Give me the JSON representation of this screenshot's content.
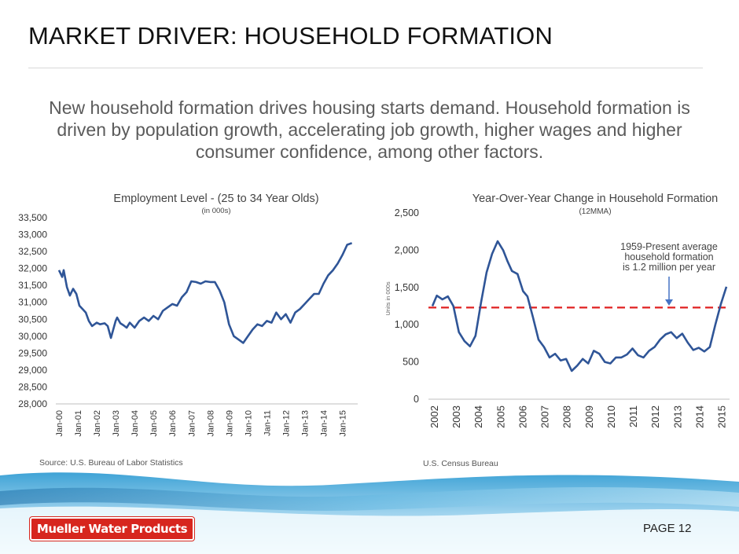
{
  "slide": {
    "title": "MARKET DRIVER:  HOUSEHOLD FORMATION",
    "subtitle": "New household formation drives housing starts demand.  Household formation is driven by population growth, accelerating job growth, higher wages and higher consumer confidence, among other factors.",
    "page": "PAGE 12",
    "logo_text": "Mueller Water Products",
    "colors": {
      "line": "#2f5597",
      "dashed_average": "#e02020",
      "brand_red": "#d7261e"
    }
  },
  "chart_data": [
    {
      "type": "line",
      "title": "Employment Level - (25 to 34 Year Olds)",
      "subtitle": "(in 000s)",
      "source": "Source: U.S. Bureau of Labor Statistics",
      "ylim": [
        28000,
        33500
      ],
      "yticks": [
        28000,
        28500,
        29000,
        29500,
        30000,
        30500,
        31000,
        31500,
        32000,
        32500,
        33000,
        33500
      ],
      "ytick_labels": [
        "28,000",
        "28,500",
        "29,000",
        "29,500",
        "30,000",
        "30,500",
        "31,000",
        "31,500",
        "32,000",
        "32,500",
        "33,000",
        "33,500"
      ],
      "xtick_labels": [
        "Jan-00",
        "Jan-01",
        "Jan-02",
        "Jan-03",
        "Jan-04",
        "Jan-05",
        "Jan-06",
        "Jan-07",
        "Jan-08",
        "Jan-09",
        "Jan-10",
        "Jan-11",
        "Jan-12",
        "Jan-13",
        "Jan-14",
        "Jan-15"
      ],
      "xlim": [
        2000.0,
        2015.6
      ],
      "series": [
        {
          "x": [
            2000.0,
            2000.17,
            2000.25,
            2000.42,
            2000.58,
            2000.75,
            2000.92,
            2001.08,
            2001.25,
            2001.42,
            2001.58,
            2001.75,
            2002.0,
            2002.17,
            2002.42,
            2002.58,
            2002.75,
            2003.0,
            2003.08,
            2003.25,
            2003.42,
            2003.58,
            2003.75,
            2004.0,
            2004.25,
            2004.5,
            2004.75,
            2005.0,
            2005.25,
            2005.5,
            2005.75,
            2006.0,
            2006.25,
            2006.5,
            2006.75,
            2007.0,
            2007.25,
            2007.5,
            2007.75,
            2008.0,
            2008.25,
            2008.5,
            2008.75,
            2009.0,
            2009.25,
            2009.5,
            2009.75,
            2010.0,
            2010.25,
            2010.5,
            2010.75,
            2011.0,
            2011.25,
            2011.5,
            2011.75,
            2012.0,
            2012.25,
            2012.5,
            2012.75,
            2013.0,
            2013.25,
            2013.5,
            2013.75,
            2014.0,
            2014.25,
            2014.5,
            2014.75,
            2015.0,
            2015.25,
            2015.5
          ],
          "y": [
            31950,
            31750,
            31950,
            31450,
            31200,
            31400,
            31250,
            30900,
            30800,
            30700,
            30450,
            30300,
            30400,
            30350,
            30380,
            30300,
            29950,
            30450,
            30550,
            30380,
            30320,
            30250,
            30400,
            30250,
            30450,
            30550,
            30450,
            30600,
            30500,
            30750,
            30850,
            30950,
            30900,
            31150,
            31300,
            31620,
            31600,
            31550,
            31620,
            31600,
            31600,
            31350,
            31000,
            30350,
            30000,
            29900,
            29800,
            30000,
            30200,
            30350,
            30300,
            30450,
            30400,
            30700,
            30500,
            30650,
            30400,
            30700,
            30800,
            30950,
            31100,
            31250,
            31250,
            31550,
            31800,
            31950,
            32150,
            32400,
            32700,
            32750
          ]
        }
      ]
    },
    {
      "type": "line",
      "title": "Year-Over-Year Change in Household Formation",
      "subtitle": "(12MMA)",
      "source": "U.S. Census Bureau",
      "ylabel": "Units in 000s",
      "ylim": [
        0,
        2500
      ],
      "yticks": [
        0,
        500,
        1000,
        1500,
        2000,
        2500
      ],
      "ytick_labels": [
        "0",
        "500",
        "1,000",
        "1,500",
        "2,000",
        "2,500"
      ],
      "xtick_labels": [
        "2002",
        "2003",
        "2004",
        "2005",
        "2006",
        "2007",
        "2008",
        "2009",
        "2010",
        "2011",
        "2012",
        "2013",
        "2014",
        "2015"
      ],
      "xlim": [
        2002.0,
        2015.3
      ],
      "average": {
        "value": 1230,
        "label": "1959-Present average household formation is 1.2 million per year"
      },
      "series": [
        {
          "x": [
            2002.0,
            2002.2,
            2002.45,
            2002.7,
            2002.95,
            2003.2,
            2003.45,
            2003.7,
            2003.95,
            2004.2,
            2004.45,
            2004.7,
            2004.95,
            2005.2,
            2005.4,
            2005.6,
            2005.85,
            2006.1,
            2006.3,
            2006.55,
            2006.8,
            2007.05,
            2007.3,
            2007.55,
            2007.8,
            2008.05,
            2008.3,
            2008.55,
            2008.8,
            2009.05,
            2009.3,
            2009.55,
            2009.8,
            2010.05,
            2010.3,
            2010.55,
            2010.8,
            2011.05,
            2011.3,
            2011.55,
            2011.8,
            2012.05,
            2012.3,
            2012.55,
            2012.8,
            2013.05,
            2013.3,
            2013.55,
            2013.8,
            2014.05,
            2014.3,
            2014.55,
            2014.8,
            2015.05,
            2015.3
          ],
          "y": [
            1250,
            1390,
            1340,
            1380,
            1250,
            900,
            780,
            710,
            850,
            1300,
            1700,
            1950,
            2120,
            2000,
            1850,
            1720,
            1680,
            1450,
            1380,
            1100,
            800,
            700,
            560,
            610,
            520,
            540,
            380,
            450,
            540,
            480,
            650,
            610,
            500,
            480,
            560,
            560,
            600,
            680,
            590,
            560,
            650,
            700,
            800,
            870,
            900,
            820,
            880,
            760,
            660,
            690,
            640,
            700,
            1000,
            1280,
            1510
          ]
        }
      ]
    }
  ]
}
